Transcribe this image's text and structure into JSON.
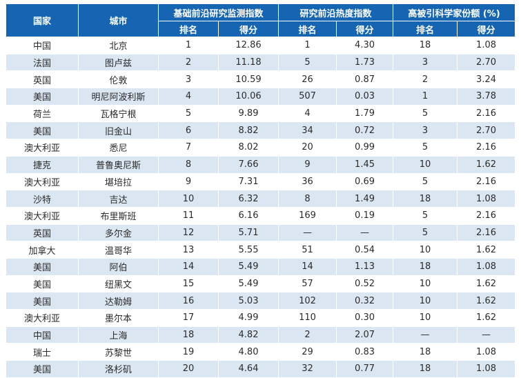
{
  "headers": {
    "country": "国家",
    "city": "城市",
    "groups": [
      "基础前沿研究监测指数",
      "研究前沿热度指数",
      "高被引科学家份额 (%)"
    ],
    "sub": [
      "排名",
      "得分",
      "排名",
      "得分",
      "排名",
      "得分"
    ]
  },
  "rows": [
    [
      "中国",
      "北京",
      "1",
      "12.86",
      "1",
      "4.30",
      "18",
      "1.08"
    ],
    [
      "法国",
      "图卢兹",
      "2",
      "11.18",
      "5",
      "1.73",
      "3",
      "2.70"
    ],
    [
      "英国",
      "伦敦",
      "3",
      "10.59",
      "26",
      "0.87",
      "2",
      "3.24"
    ],
    [
      "美国",
      "明尼阿波利斯",
      "4",
      "10.06",
      "507",
      "0.03",
      "1",
      "3.78"
    ],
    [
      "荷兰",
      "瓦格宁根",
      "5",
      "9.89",
      "4",
      "1.79",
      "5",
      "2.16"
    ],
    [
      "美国",
      "旧金山",
      "6",
      "8.82",
      "34",
      "0.72",
      "3",
      "2.70"
    ],
    [
      "澳大利亚",
      "悉尼",
      "7",
      "8.02",
      "20",
      "0.99",
      "5",
      "2.16"
    ],
    [
      "捷克",
      "普鲁奥尼斯",
      "8",
      "7.66",
      "9",
      "1.45",
      "10",
      "1.62"
    ],
    [
      "澳大利亚",
      "堪培拉",
      "9",
      "7.31",
      "36",
      "0.69",
      "5",
      "2.16"
    ],
    [
      "沙特",
      "吉达",
      "10",
      "6.32",
      "8",
      "1.49",
      "18",
      "1.08"
    ],
    [
      "澳大利亚",
      "布里斯班",
      "11",
      "6.16",
      "169",
      "0.19",
      "5",
      "2.16"
    ],
    [
      "英国",
      "多尔金",
      "12",
      "5.71",
      "—",
      "—",
      "5",
      "2.16"
    ],
    [
      "加拿大",
      "温哥华",
      "13",
      "5.55",
      "51",
      "0.54",
      "10",
      "1.62"
    ],
    [
      "美国",
      "阿伯",
      "14",
      "5.49",
      "14",
      "1.13",
      "18",
      "1.08"
    ],
    [
      "美国",
      "纽黑文",
      "15",
      "5.49",
      "57",
      "0.52",
      "10",
      "1.62"
    ],
    [
      "美国",
      "达勒姆",
      "16",
      "5.03",
      "102",
      "0.32",
      "10",
      "1.62"
    ],
    [
      "澳大利亚",
      "墨尔本",
      "17",
      "4.99",
      "110",
      "0.30",
      "10",
      "1.62"
    ],
    [
      "中国",
      "上海",
      "18",
      "4.82",
      "2",
      "2.07",
      "—",
      "—"
    ],
    [
      "瑞士",
      "苏黎世",
      "19",
      "4.80",
      "29",
      "0.83",
      "18",
      "1.08"
    ],
    [
      "美国",
      "洛杉矶",
      "20",
      "4.64",
      "32",
      "0.77",
      "18",
      "1.08"
    ]
  ]
}
